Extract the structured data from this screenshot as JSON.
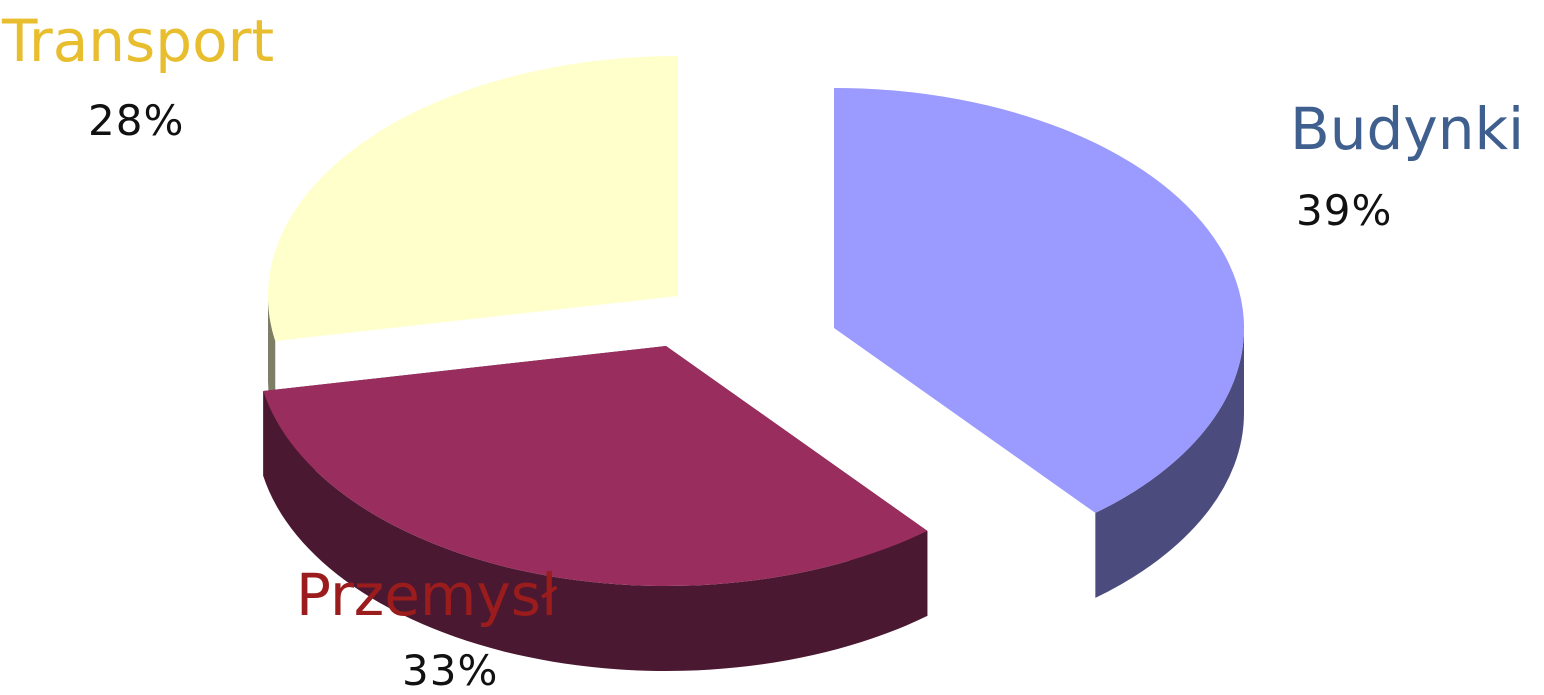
{
  "chart_data": {
    "type": "pie",
    "style": "3d-exploded",
    "slices": [
      {
        "label": "Budynki",
        "value": 39,
        "value_label": "39%",
        "label_color": "#3F5F8F",
        "top_color": "#9A9AFF",
        "side_color": "#4B4B7D"
      },
      {
        "label": "Przemysł",
        "value": 33,
        "value_label": "33%",
        "label_color": "#9B1C1C",
        "top_color": "#992E5E",
        "side_color": "#4A1830"
      },
      {
        "label": "Transport",
        "value": 28,
        "value_label": "28%",
        "label_color": "#E8BE2E",
        "top_color": "#FFFFCC",
        "side_color": "#7E7E66"
      }
    ]
  }
}
